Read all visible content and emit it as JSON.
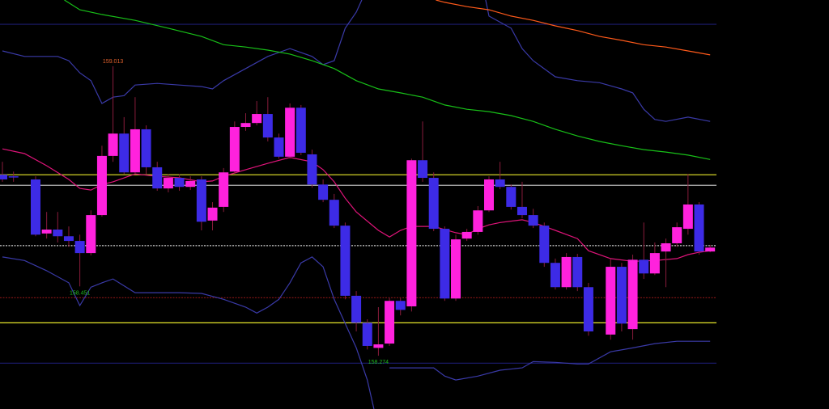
{
  "chart_data": {
    "type": "candlestick",
    "xlim": [
      -0.22,
      74.75
    ],
    "ylim": [
      158.138,
      159.182
    ],
    "up_color": "#ff22dd",
    "down_color": "#3d2be6",
    "wick_color": "#8a1c3c",
    "x": [
      0,
      1,
      3,
      4,
      5,
      6,
      7,
      8,
      9,
      10,
      11,
      12,
      13,
      14,
      15,
      16,
      17,
      18,
      19,
      20,
      21,
      22,
      23,
      24,
      25,
      26,
      27,
      28,
      29,
      30,
      31,
      32,
      33,
      34,
      35,
      36,
      37,
      38,
      39,
      40,
      41,
      42,
      43,
      44,
      45,
      46,
      47,
      48,
      49,
      50,
      51,
      52,
      53,
      55,
      56,
      57,
      58,
      59,
      60,
      61,
      62,
      63,
      64
    ],
    "open": [
      158.736,
      158.732,
      158.724,
      158.586,
      158.596,
      158.579,
      158.567,
      158.536,
      158.633,
      158.784,
      158.841,
      158.742,
      158.852,
      158.755,
      158.701,
      158.728,
      158.705,
      158.724,
      158.619,
      158.654,
      158.744,
      158.858,
      158.868,
      158.891,
      158.831,
      158.782,
      158.907,
      158.788,
      158.711,
      158.672,
      158.606,
      158.427,
      158.358,
      158.294,
      158.305,
      158.414,
      158.4,
      158.773,
      158.728,
      158.598,
      158.42,
      158.573,
      158.59,
      158.645,
      158.724,
      158.705,
      158.654,
      158.633,
      158.606,
      158.511,
      158.449,
      158.526,
      158.449,
      158.328,
      158.501,
      158.342,
      158.519,
      158.484,
      158.54,
      158.561,
      158.598,
      158.66,
      158.54
    ],
    "high": [
      158.769,
      158.744,
      158.732,
      158.641,
      158.641,
      158.604,
      158.583,
      158.645,
      158.81,
      159.013,
      158.883,
      158.934,
      158.862,
      158.769,
      158.738,
      158.738,
      158.732,
      158.732,
      158.666,
      158.753,
      158.872,
      158.893,
      158.924,
      158.934,
      158.841,
      158.918,
      158.914,
      158.8,
      158.724,
      158.687,
      158.614,
      158.439,
      158.367,
      158.398,
      158.422,
      158.422,
      158.777,
      158.872,
      158.742,
      158.604,
      158.583,
      158.598,
      158.656,
      158.732,
      158.769,
      158.711,
      158.718,
      158.649,
      158.614,
      158.522,
      158.536,
      158.534,
      158.46,
      158.522,
      158.511,
      158.532,
      158.614,
      158.563,
      158.573,
      158.614,
      158.738,
      158.666,
      158.557
    ],
    "low": [
      158.718,
      158.718,
      158.579,
      158.573,
      158.563,
      158.552,
      158.451,
      158.53,
      158.629,
      158.769,
      158.738,
      158.738,
      158.738,
      158.695,
      158.691,
      158.695,
      158.697,
      158.594,
      158.594,
      158.641,
      158.738,
      158.848,
      158.862,
      158.821,
      158.777,
      158.777,
      158.786,
      158.703,
      158.666,
      158.6,
      158.418,
      158.336,
      158.29,
      158.274,
      158.299,
      158.377,
      158.387,
      158.718,
      158.592,
      158.414,
      158.414,
      158.567,
      158.583,
      158.641,
      158.699,
      158.647,
      158.625,
      158.6,
      158.501,
      158.443,
      158.443,
      158.439,
      158.325,
      158.315,
      158.336,
      158.315,
      158.47,
      158.48,
      158.449,
      158.552,
      158.583,
      158.532,
      158.538
    ],
    "close": [
      158.724,
      158.73,
      158.583,
      158.596,
      158.579,
      158.567,
      158.536,
      158.633,
      158.784,
      158.841,
      158.742,
      158.852,
      158.755,
      158.701,
      158.728,
      158.705,
      158.72,
      158.616,
      158.652,
      158.742,
      158.858,
      158.868,
      158.891,
      158.831,
      158.782,
      158.907,
      158.792,
      158.711,
      158.672,
      158.606,
      158.427,
      158.358,
      158.299,
      158.303,
      158.414,
      158.391,
      158.773,
      158.728,
      158.598,
      158.42,
      158.571,
      158.59,
      158.645,
      158.724,
      158.705,
      158.654,
      158.633,
      158.606,
      158.511,
      158.449,
      158.526,
      158.449,
      158.336,
      158.501,
      158.356,
      158.519,
      158.484,
      158.536,
      158.561,
      158.602,
      158.66,
      158.54,
      158.55
    ],
    "levels": [
      {
        "value": 159.12,
        "color": "#1c1c70",
        "style": "solid"
      },
      {
        "value": 158.736,
        "color": "#e8e82a",
        "style": "solid"
      },
      {
        "value": 158.709,
        "color": "#b4b4b4",
        "style": "solid"
      },
      {
        "value": 158.555,
        "color": "#cfcfcf",
        "style": "dotted"
      },
      {
        "value": 158.422,
        "color": "#7a1414",
        "style": "dotted"
      },
      {
        "value": 158.358,
        "color": "#e8e82a",
        "style": "solid"
      },
      {
        "value": 158.255,
        "color": "#1c1c70",
        "style": "solid"
      }
    ],
    "lines": [
      {
        "color": "#3a3aa8",
        "x": [
          0,
          2,
          5,
          6,
          7,
          8,
          9,
          10,
          11,
          12,
          14,
          16,
          18,
          19,
          20,
          22,
          24,
          26,
          28,
          29,
          30,
          31,
          32,
          32.5,
          38,
          43.7,
          44,
          46,
          47,
          48,
          50,
          52,
          54,
          56,
          57,
          58,
          59,
          60,
          62,
          64
        ],
        "values": [
          159.052,
          159.038,
          159.038,
          159.027,
          158.996,
          158.976,
          158.918,
          158.934,
          158.938,
          158.965,
          158.969,
          158.965,
          158.961,
          158.955,
          158.976,
          159.007,
          159.038,
          159.058,
          159.038,
          159.017,
          159.027,
          159.11,
          159.151,
          159.182,
          null,
          159.182,
          159.141,
          159.11,
          159.058,
          159.027,
          158.986,
          158.976,
          158.971,
          158.955,
          158.945,
          158.903,
          158.877,
          158.872,
          158.883,
          158.872
        ]
      },
      {
        "color": "#3a3aa8",
        "x": [
          0,
          2,
          4,
          6,
          7,
          8,
          9,
          10,
          12,
          14,
          16,
          18,
          20,
          22,
          23,
          24,
          25,
          26,
          27,
          28,
          29,
          30,
          31,
          32,
          33,
          33.6,
          34.5,
          35,
          37,
          39,
          40,
          41,
          43,
          45,
          47,
          48,
          50,
          52,
          53,
          55,
          57,
          59,
          61,
          64
        ],
        "values": [
          158.526,
          158.517,
          158.491,
          158.46,
          158.402,
          158.449,
          158.46,
          158.47,
          158.435,
          158.435,
          158.435,
          158.433,
          158.418,
          158.398,
          158.383,
          158.398,
          158.418,
          158.46,
          158.511,
          158.526,
          158.501,
          158.418,
          158.356,
          158.294,
          158.212,
          158.138,
          null,
          158.243,
          158.243,
          158.243,
          158.222,
          158.212,
          158.222,
          158.237,
          158.243,
          158.259,
          158.257,
          158.253,
          158.253,
          158.284,
          158.294,
          158.305,
          158.311,
          158.311
        ]
      },
      {
        "color": "#18c018",
        "x": [
          5.6,
          7,
          9,
          12,
          15,
          18,
          20,
          22,
          24,
          26,
          28,
          30,
          32,
          34,
          36,
          38,
          40,
          42,
          44,
          46,
          48,
          50,
          52,
          54,
          56,
          58,
          60,
          62,
          64
        ],
        "values": [
          159.182,
          159.157,
          159.145,
          159.13,
          159.11,
          159.089,
          159.068,
          159.062,
          159.054,
          159.044,
          159.027,
          159.007,
          158.976,
          158.955,
          158.945,
          158.934,
          158.914,
          158.903,
          158.897,
          158.887,
          158.872,
          158.852,
          158.835,
          158.821,
          158.81,
          158.8,
          158.794,
          158.786,
          158.775
        ]
      },
      {
        "color": "#ff5a1a",
        "x": [
          39.2,
          40,
          42,
          44,
          46,
          48,
          50,
          52,
          54,
          56,
          58,
          60,
          62,
          64
        ],
        "values": [
          159.182,
          159.176,
          159.165,
          159.157,
          159.141,
          159.13,
          159.116,
          159.104,
          159.089,
          159.079,
          159.068,
          159.062,
          159.052,
          159.042
        ]
      },
      {
        "color": "#e0147a",
        "x": [
          0,
          2,
          4,
          6,
          7,
          8,
          9,
          10,
          12,
          14,
          16,
          18,
          19,
          20,
          22,
          24,
          26,
          28,
          29,
          30,
          31,
          32,
          34,
          35,
          36,
          37,
          39,
          41,
          42,
          43,
          44,
          45,
          47,
          48,
          49,
          50,
          52,
          53,
          55,
          57,
          59,
          61,
          62,
          63,
          64
        ],
        "values": [
          158.802,
          158.79,
          158.759,
          158.724,
          158.701,
          158.697,
          158.711,
          158.718,
          158.738,
          158.732,
          158.728,
          158.718,
          158.72,
          158.732,
          158.749,
          158.765,
          158.78,
          158.769,
          158.749,
          158.718,
          158.676,
          158.641,
          158.594,
          158.577,
          158.594,
          158.604,
          158.604,
          158.588,
          158.583,
          158.598,
          158.608,
          158.614,
          158.621,
          158.614,
          158.604,
          158.594,
          158.573,
          158.542,
          158.522,
          158.515,
          158.517,
          158.522,
          158.532,
          158.538,
          158.542
        ]
      }
    ],
    "annotations": [
      {
        "value": 159.013,
        "label": "159.013",
        "color": "#e0602c"
      },
      {
        "value": 158.451,
        "label": "158.451",
        "color": "#1fb81f"
      },
      {
        "value": 158.274,
        "label": "158.274",
        "color": "#1fb81f"
      }
    ]
  }
}
